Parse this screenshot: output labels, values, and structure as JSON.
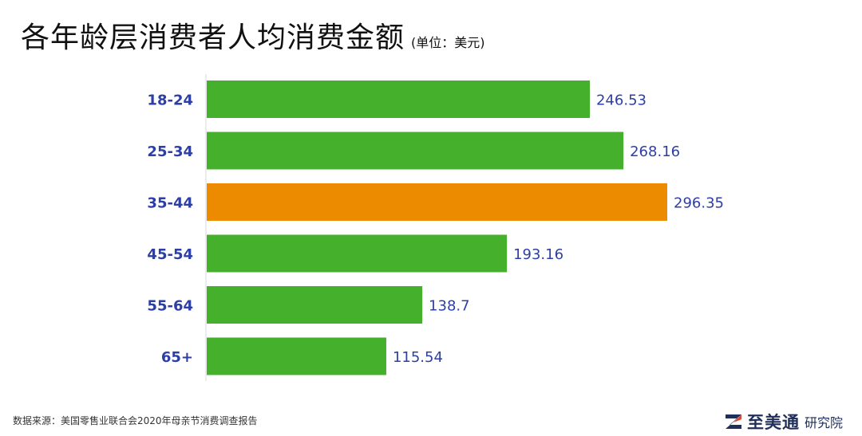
{
  "header": {
    "title": "各年龄层消费者人均消费金额",
    "unit": "(单位：美元)"
  },
  "chart_data": {
    "type": "bar",
    "orientation": "horizontal",
    "categories": [
      "18-24",
      "25-34",
      "35-44",
      "45-54",
      "55-64",
      "65+"
    ],
    "values": [
      246.53,
      268.16,
      296.35,
      193.16,
      138.7,
      115.54
    ],
    "value_labels": [
      "246.53",
      "268.16",
      "296.35",
      "193.16",
      "138.7",
      "115.54"
    ],
    "highlight": "35-44",
    "xlim": [
      0,
      296.35
    ],
    "grid": false,
    "colors": {
      "default": "#44b02b",
      "highlight": "#ed8b00",
      "category_label": "#2d3fa6",
      "value_label": "#2d3fa6"
    }
  },
  "footer": {
    "source": "数据来源：美国零售业联合会2020年母亲节消费调查报告",
    "brand_name": "至美通",
    "brand_sub": "研究院",
    "brand_color": "#1f2f5a"
  }
}
